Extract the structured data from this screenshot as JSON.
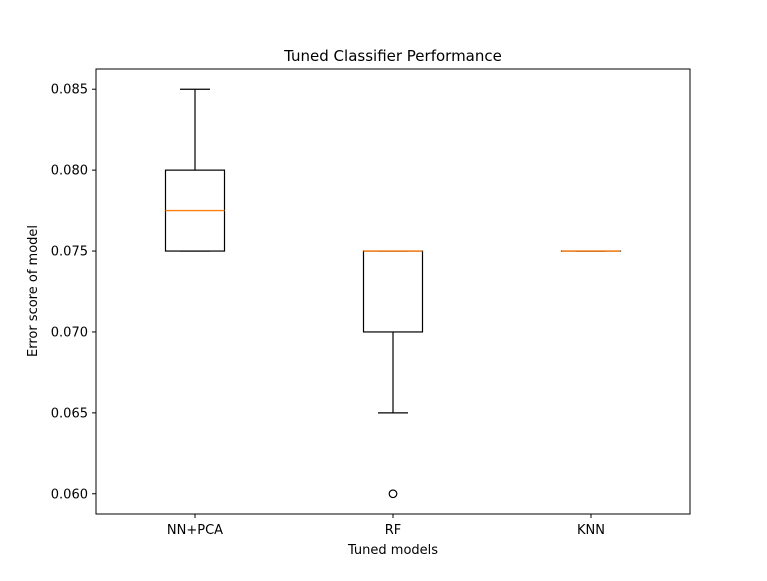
{
  "chart_data": {
    "type": "box",
    "title": "Tuned Classifier Performance",
    "xlabel": "Tuned models",
    "ylabel": "Error score of model",
    "categories": [
      "NN+PCA",
      "RF",
      "KNN"
    ],
    "boxes": [
      {
        "category": "NN+PCA",
        "whislo": 0.075,
        "q1": 0.075,
        "med": 0.0775,
        "q3": 0.08,
        "whishi": 0.085,
        "fliers": []
      },
      {
        "category": "RF",
        "whislo": 0.065,
        "q1": 0.07,
        "med": 0.075,
        "q3": 0.075,
        "whishi": 0.075,
        "fliers": [
          0.06
        ]
      },
      {
        "category": "KNN",
        "whislo": 0.075,
        "q1": 0.075,
        "med": 0.075,
        "q3": 0.075,
        "whishi": 0.075,
        "fliers": []
      }
    ],
    "yticks": [
      "0.060",
      "0.065",
      "0.070",
      "0.075",
      "0.080",
      "0.085"
    ],
    "ytick_values": [
      0.06,
      0.065,
      0.07,
      0.075,
      0.08,
      0.085
    ],
    "ylim": [
      0.05875,
      0.08625
    ],
    "grid": false,
    "colors": {
      "box": "#000000",
      "median": "#ff7f0e",
      "flier": "#000000"
    }
  }
}
